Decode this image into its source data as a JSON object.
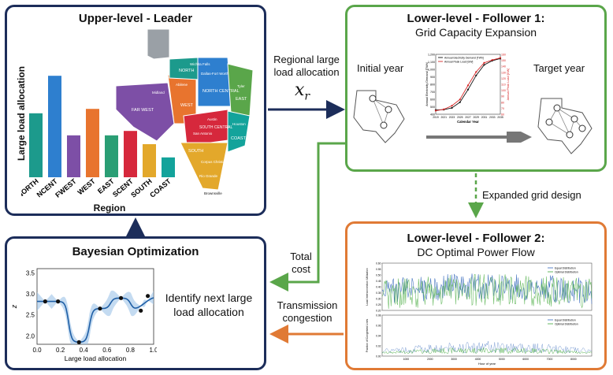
{
  "leader": {
    "title": "Upper-level - Leader",
    "y_label": "Large load allocation",
    "x_label": "Region",
    "map_labels": [
      "NORTH",
      "Wichita Falls",
      "Dallas-Fort Worth",
      "NORTH CENTRAL",
      "Tyler",
      "EAST",
      "Abilene",
      "Midland",
      "FAR WEST",
      "WEST",
      "Austin",
      "San Antonio",
      "SOUTH CENTRAL",
      "Houston",
      "COAST",
      "SOUTH",
      "Corpus Christi",
      "Brownsville",
      "Rio Grande"
    ]
  },
  "bar_chart": {
    "type": "bar",
    "categories": [
      "NORTH",
      "NCENT",
      "FWEST",
      "WEST",
      "EAST",
      "SCENT",
      "SOUTH",
      "COAST"
    ],
    "values": [
      0.58,
      0.92,
      0.38,
      0.62,
      0.38,
      0.42,
      0.3,
      0.18
    ],
    "colors": [
      "#1c9a8c",
      "#2e7fcf",
      "#7d4fa6",
      "#e8742e",
      "#2a9e74",
      "#d6283c",
      "#e3a82b",
      "#13a39b"
    ]
  },
  "follower1": {
    "title": "Lower-level - Follower 1:",
    "subtitle": "Grid Capacity Expansion",
    "initial_label": "Initial year",
    "target_label": "Target year"
  },
  "capacity_chart": {
    "type": "line",
    "x": [
      2019,
      2021,
      2023,
      2025,
      2027,
      2029,
      2031,
      2033,
      2035
    ],
    "series": [
      {
        "name": "Annual Electricity Demand [TWh]",
        "values": [
          410,
          415,
          440,
          520,
          700,
          900,
          1050,
          1110,
          1140
        ],
        "color": "#111111"
      },
      {
        "name": "Annual Peak Load [GW]",
        "values": [
          400,
          420,
          470,
          560,
          760,
          950,
          1080,
          1120,
          1150
        ],
        "color": "#d62828"
      }
    ],
    "xlabel": "Calendar Year",
    "ylabel": "Annual Electricity Demand [TWh]",
    "y2label": "Annual Peak Load [GW]",
    "y_ticks": [
      "400",
      "500",
      "600",
      "700",
      "800",
      "900",
      "1,000",
      "1,100",
      "1,200"
    ],
    "y2_ticks": [
      "60",
      "70",
      "80",
      "90",
      "100",
      "110",
      "120",
      "130",
      "140",
      "150",
      "160"
    ],
    "x_ticks": [
      "2019",
      "2021",
      "2023",
      "2025",
      "2027",
      "2029",
      "2031",
      "2033",
      "2035"
    ],
    "ylim": [
      400,
      1200
    ]
  },
  "follower2": {
    "title": "Lower-level - Follower 2:",
    "subtitle": "DC Optimal Power Flow",
    "legend": [
      "Equal Distribution",
      "Optimal Distribution"
    ],
    "top_ylabel": "Load Interconnection Utilization",
    "bottom_ylabel": "Fraction of Congested Lines",
    "xlabel": "Hour of year",
    "x_ticks": [
      "1000",
      "2000",
      "3000",
      "4000",
      "5000",
      "6000",
      "7000",
      "8000"
    ],
    "top_y_ticks": [
      "0.20",
      "0.25",
      "0.30",
      "0.35",
      "0.40",
      "0.45",
      "0.50",
      "0.55",
      "0.60"
    ],
    "bottom_y_ticks": [
      "0.00",
      "0.02",
      "0.04",
      "0.06",
      "0.08"
    ]
  },
  "bayes": {
    "title": "Bayesian Optimization",
    "caption": "Identify next large load allocation",
    "xlabel": "Large load allocation",
    "ylabel": "z"
  },
  "bayes_chart": {
    "type": "line",
    "x_ticks": [
      "0.0",
      "0.2",
      "0.4",
      "0.6",
      "0.8",
      "1.0"
    ],
    "y_ticks": [
      "2.0",
      "2.5",
      "3.0",
      "3.5"
    ],
    "ylim": [
      1.8,
      3.6
    ],
    "xlim": [
      0,
      1
    ],
    "observations": [
      {
        "x": 0.07,
        "y": 2.82
      },
      {
        "x": 0.18,
        "y": 2.82
      },
      {
        "x": 0.36,
        "y": 1.85
      },
      {
        "x": 0.54,
        "y": 2.65
      },
      {
        "x": 0.72,
        "y": 2.9
      },
      {
        "x": 0.89,
        "y": 2.6
      },
      {
        "x": 0.95,
        "y": 2.95
      }
    ]
  },
  "arrows": {
    "regional_label": "Regional large load allocation",
    "variable": "x",
    "variable_sub": "r",
    "expanded_label": "Expanded grid design",
    "cost_label": "Total cost",
    "congestion_label": "Transmission congestion"
  },
  "colors": {
    "navy": "#1c2d5a",
    "green": "#5aa64a",
    "orange": "#e07a35"
  }
}
